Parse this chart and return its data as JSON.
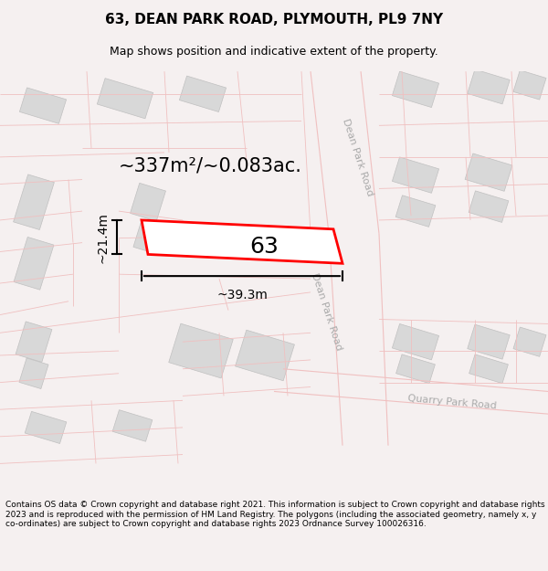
{
  "title": "63, DEAN PARK ROAD, PLYMOUTH, PL9 7NY",
  "subtitle": "Map shows position and indicative extent of the property.",
  "footer": "Contains OS data © Crown copyright and database right 2021. This information is subject to Crown copyright and database rights 2023 and is reproduced with the permission of HM Land Registry. The polygons (including the associated geometry, namely x, y co-ordinates) are subject to Crown copyright and database rights 2023 Ordnance Survey 100026316.",
  "map_bg": "#ffffff",
  "building_fill": "#d8d8d8",
  "building_edge": "#c0c0c0",
  "road_line_color": "#f0c0c0",
  "highlight_fill": "#ffffff",
  "highlight_edge": "#ff0000",
  "highlight_edge_width": 2.0,
  "highlight_label": "63",
  "area_text": "~337m²/~0.083ac.",
  "width_text": "~39.3m",
  "height_text": "~21.4m",
  "title_fontsize": 11,
  "subtitle_fontsize": 9,
  "footer_fontsize": 6.5,
  "label_fontsize": 18,
  "road_label_fontsize": 8,
  "dim_fontsize": 10,
  "area_fontsize": 15,
  "dean_park_road_label": "Dean Park Road",
  "quarry_park_road_label": "Quarry Park Road"
}
